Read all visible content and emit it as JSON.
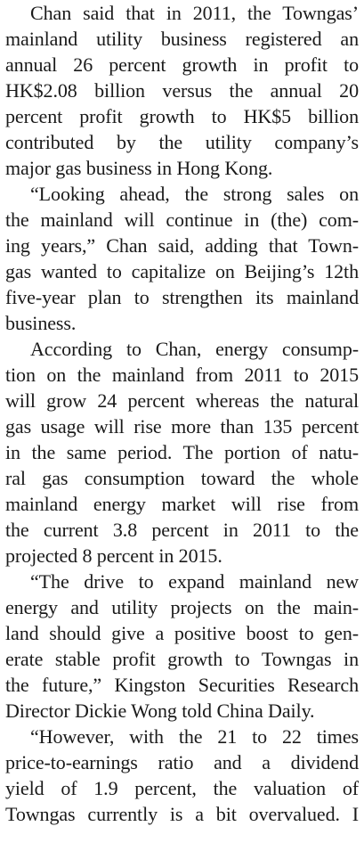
{
  "paragraphs": [
    {
      "lines": [
        "Chan said that in 2011, the Towngas’",
        "mainland utility business registered an",
        "annual 26 percent growth in profit to",
        "HK$2.08 billion versus the annual 20",
        "percent profit growth to HK$5 billion",
        "contributed by the utility company’s",
        "major gas business in Hong Kong."
      ]
    },
    {
      "lines": [
        "“Looking ahead, the strong sales on",
        "the mainland will continue in (the) com-",
        "ing years,” Chan said, adding that Town-",
        "gas wanted to capitalize on Beijing’s 12th",
        "five-year plan to strengthen its mainland",
        "business."
      ]
    },
    {
      "lines": [
        "According to Chan, energy consump-",
        "tion on the mainland from 2011 to 2015",
        "will grow 24 percent whereas the natural",
        "gas usage will rise more than 135 percent",
        "in the same period. The portion of natu-",
        "ral gas consumption toward the whole",
        "mainland energy market will rise from",
        "the current 3.8 percent in 2011 to the",
        "projected 8 percent in 2015."
      ]
    },
    {
      "lines": [
        "“The drive to expand mainland new",
        "energy and utility projects on the main-",
        "land should give a positive boost to gen-",
        "erate stable profit growth to Towngas in",
        "the future,” Kingston Securities Research",
        "Director Dickie Wong told China Daily."
      ]
    },
    {
      "lines": [
        "“However, with the 21 to 22 times",
        "price-to-earnings ratio and a dividend",
        "yield of 1.9 percent, the valuation of",
        "Towngas currently is a bit overvalued. I"
      ]
    }
  ]
}
